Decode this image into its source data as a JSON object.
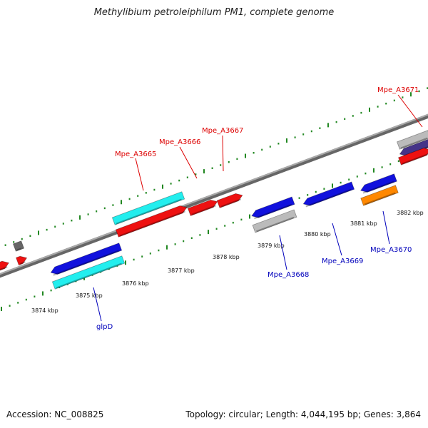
{
  "title": "Methylibium petroleiphilum PM1, complete genome",
  "footer": {
    "accession": "Accession: NC_008825",
    "summary": "Topology: circular; Length: 4,044,195 bp; Genes: 3,864"
  },
  "colors": {
    "forward_label": "#dd0000",
    "reverse_label": "#0000bb",
    "tick": "#228822",
    "backbone": "#888888",
    "red": "#ee1111",
    "blue": "#1111dd",
    "cyan": "#22eeee",
    "gray": "#bbbbbb",
    "darkgray": "#666666",
    "orange": "#ff8800",
    "navy": "#443388"
  },
  "ticks": [
    {
      "label": "3874 kbp"
    },
    {
      "label": "3875 kbp"
    },
    {
      "label": "3876 kbp"
    },
    {
      "label": "3877 kbp"
    },
    {
      "label": "3878 kbp"
    },
    {
      "label": "3879 kbp"
    },
    {
      "label": "3880 kbp"
    },
    {
      "label": "3881 kbp"
    },
    {
      "label": "3882 kbp"
    }
  ],
  "gene_labels": [
    {
      "name": "Mpe_A3665",
      "strand": "forward"
    },
    {
      "name": "Mpe_A3666",
      "strand": "forward"
    },
    {
      "name": "Mpe_A3667",
      "strand": "forward"
    },
    {
      "name": "Mpe_A3671",
      "strand": "forward"
    },
    {
      "name": "glpD",
      "strand": "reverse"
    },
    {
      "name": "Mpe_A3668",
      "strand": "reverse"
    },
    {
      "name": "Mpe_A3669",
      "strand": "reverse"
    },
    {
      "name": "Mpe_A3670",
      "strand": "reverse"
    }
  ]
}
